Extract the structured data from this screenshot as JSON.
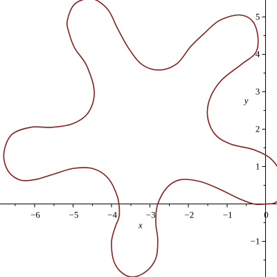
{
  "chart_data": {
    "type": "line",
    "title": "",
    "xlabel": "x",
    "ylabel": "y",
    "xlim": [
      -6.9,
      0.3
    ],
    "ylim": [
      -1.95,
      5.45
    ],
    "grid": false,
    "legend": "none",
    "x_ticks": [
      {
        "value": -6,
        "label": "−6"
      },
      {
        "value": -5,
        "label": "−5"
      },
      {
        "value": -4,
        "label": "−4"
      },
      {
        "value": -3,
        "label": "−3"
      },
      {
        "value": -2,
        "label": "−2"
      },
      {
        "value": -1,
        "label": "−1"
      },
      {
        "value": 0,
        "label": "0"
      }
    ],
    "y_ticks": [
      {
        "value": -1,
        "label": "−1"
      },
      {
        "value": 1,
        "label": "1"
      },
      {
        "value": 2,
        "label": "2"
      },
      {
        "value": 3,
        "label": "3"
      },
      {
        "value": 4,
        "label": "4"
      },
      {
        "value": 5,
        "label": "5"
      }
    ],
    "series": [
      {
        "color": "#8b1a1a",
        "closed": true,
        "points": [
          [
            0,
            0
          ],
          [
            0.28,
            0.05
          ],
          [
            0.45,
            0.35
          ],
          [
            0.4,
            0.8
          ],
          [
            0.15,
            1.2
          ],
          [
            -0.3,
            1.45
          ],
          [
            -0.9,
            1.6
          ],
          [
            -1.3,
            1.85
          ],
          [
            -1.5,
            2.3
          ],
          [
            -1.45,
            2.8
          ],
          [
            -1.15,
            3.3
          ],
          [
            -0.6,
            3.75
          ],
          [
            -0.25,
            4.05
          ],
          [
            -0.2,
            4.5
          ],
          [
            -0.35,
            4.9
          ],
          [
            -0.7,
            5.05
          ],
          [
            -1.2,
            4.9
          ],
          [
            -1.6,
            4.55
          ],
          [
            -1.95,
            4.2
          ],
          [
            -2.3,
            3.75
          ],
          [
            -2.75,
            3.58
          ],
          [
            -3.2,
            3.72
          ],
          [
            -3.55,
            4.15
          ],
          [
            -3.85,
            4.7
          ],
          [
            -4.1,
            5.2
          ],
          [
            -4.5,
            5.48
          ],
          [
            -4.95,
            5.35
          ],
          [
            -5.15,
            4.9
          ],
          [
            -5.1,
            4.55
          ],
          [
            -4.95,
            4.15
          ],
          [
            -4.65,
            3.7
          ],
          [
            -4.45,
            3.0
          ],
          [
            -4.6,
            2.45
          ],
          [
            -5.0,
            2.15
          ],
          [
            -5.55,
            2.05
          ],
          [
            -6.1,
            2.05
          ],
          [
            -6.6,
            1.85
          ],
          [
            -6.8,
            1.35
          ],
          [
            -6.7,
            0.9
          ],
          [
            -6.4,
            0.65
          ],
          [
            -6.0,
            0.65
          ],
          [
            -5.5,
            0.8
          ],
          [
            -5.0,
            0.95
          ],
          [
            -4.5,
            0.95
          ],
          [
            -4.1,
            0.7
          ],
          [
            -3.85,
            0.2
          ],
          [
            -3.8,
            -0.3
          ],
          [
            -3.9,
            -0.6
          ],
          [
            -4.0,
            -1.0
          ],
          [
            -3.95,
            -1.5
          ],
          [
            -3.75,
            -1.82
          ],
          [
            -3.45,
            -1.95
          ],
          [
            -3.1,
            -1.8
          ],
          [
            -2.85,
            -1.45
          ],
          [
            -2.8,
            -0.95
          ],
          [
            -2.85,
            -0.5
          ],
          [
            -2.8,
            0.0
          ],
          [
            -2.55,
            0.45
          ],
          [
            -2.2,
            0.65
          ],
          [
            -1.7,
            0.6
          ],
          [
            -1.2,
            0.4
          ],
          [
            -0.7,
            0.15
          ],
          [
            -0.3,
            0.0
          ],
          [
            0,
            0
          ]
        ]
      }
    ]
  }
}
